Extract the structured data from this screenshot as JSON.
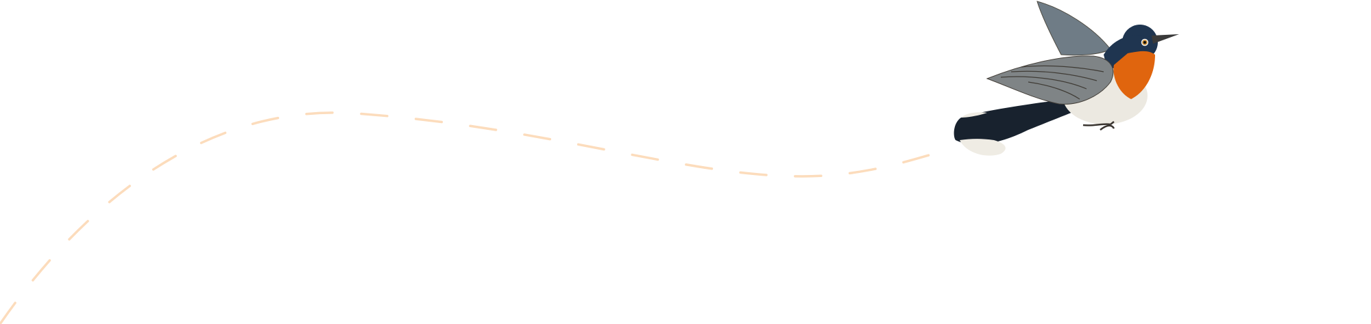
{
  "illustration": {
    "subject": "bird-icon",
    "flight_path": "dashed-path",
    "colors": {
      "background": "#ffffff",
      "path": "#fcdcbc",
      "head": "#1f3550",
      "throat": "#e0650e",
      "belly": "#ece9e1",
      "wing": "#7f8486",
      "tail": "#18222e"
    }
  }
}
